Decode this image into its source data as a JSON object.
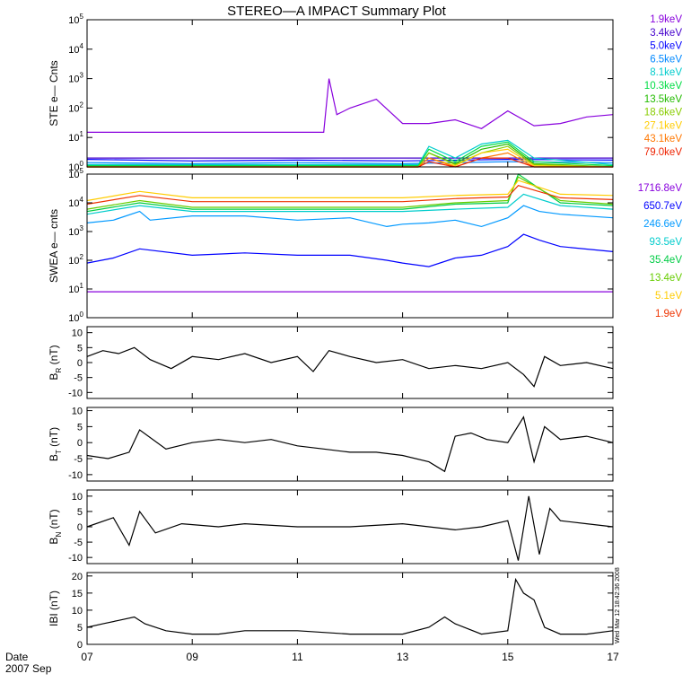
{
  "title": "STEREO—A IMPACT Summary Plot",
  "stamp": "Wed Mar 12 18:42:36 2008",
  "footer": {
    "date_label": "Date",
    "period_label": "2007 Sep"
  },
  "x_axis": {
    "range": [
      7,
      17
    ],
    "ticks": [
      7,
      9,
      11,
      13,
      15,
      17
    ],
    "tick_labels": [
      "07",
      "09",
      "11",
      "13",
      "15",
      "17"
    ]
  },
  "colors": {
    "background": "#ffffff",
    "axes": "#000000",
    "trace": "#000000"
  },
  "chart_data": [
    {
      "type": "line",
      "ylabel": "STE e— Cnts",
      "yscale": "log",
      "ylim": [
        1,
        100000
      ],
      "yticks": [
        1,
        10,
        100,
        1000,
        10000,
        100000
      ],
      "legend_position": "right",
      "series": [
        {
          "name": "1.9keV",
          "color": "#8800dd",
          "x": [
            7.0,
            8.0,
            9.0,
            10.0,
            11.0,
            11.5,
            11.6,
            11.75,
            12.0,
            12.5,
            13.0,
            13.2,
            13.5,
            14.0,
            14.5,
            15.0,
            15.5,
            16.0,
            16.5,
            17.0
          ],
          "y": [
            15,
            15,
            15,
            15,
            15,
            15,
            1000,
            60,
            100,
            200,
            30,
            30,
            30,
            40,
            20,
            80,
            25,
            30,
            50,
            60
          ]
        },
        {
          "name": "3.4keV",
          "color": "#4400cc",
          "x": [
            7,
            9,
            11,
            13,
            15,
            17
          ],
          "y": [
            2,
            2,
            2,
            2,
            2,
            2
          ]
        },
        {
          "name": "5.0keV",
          "color": "#0000ff",
          "x": [
            7,
            9,
            11,
            13,
            15,
            17
          ],
          "y": [
            1.8,
            1.6,
            1.7,
            1.6,
            1.8,
            1.7
          ]
        },
        {
          "name": "6.5keV",
          "color": "#0088ff",
          "x": [
            7,
            9,
            11,
            13,
            15,
            17
          ],
          "y": [
            1.4,
            1.3,
            1.4,
            1.3,
            1.5,
            1.4
          ]
        },
        {
          "name": "8.1keV",
          "color": "#00cccc",
          "x": [
            7,
            13.3,
            13.5,
            14,
            14.5,
            15,
            15.5,
            17
          ],
          "y": [
            1.2,
            1.2,
            5,
            2,
            6,
            8,
            2,
            1.2
          ]
        },
        {
          "name": "10.3keV",
          "color": "#00dd44",
          "x": [
            7,
            13.3,
            13.5,
            14,
            14.5,
            15,
            15.5,
            17
          ],
          "y": [
            1.1,
            1.1,
            4,
            1.5,
            5,
            7,
            1.5,
            1.1
          ]
        },
        {
          "name": "13.5keV",
          "color": "#22bb00",
          "x": [
            7,
            13.3,
            13.5,
            14,
            14.5,
            15,
            15.5,
            17
          ],
          "y": [
            1.0,
            1.0,
            3,
            1.3,
            4,
            6,
            1.3,
            1.0
          ]
        },
        {
          "name": "18.6keV",
          "color": "#88cc00",
          "x": [
            7,
            13.3,
            13.5,
            14,
            14.5,
            15,
            15.5,
            17
          ],
          "y": [
            1.0,
            1.0,
            3,
            1.2,
            3,
            5,
            1.2,
            1.0
          ]
        },
        {
          "name": "27.1keV",
          "color": "#ffcc00",
          "x": [
            7,
            13.3,
            13.5,
            14,
            14.5,
            15,
            15.5,
            17
          ],
          "y": [
            1.0,
            1.0,
            2,
            1.1,
            3,
            4,
            1.1,
            1.0
          ]
        },
        {
          "name": "43.1keV",
          "color": "#ff7700",
          "x": [
            7,
            13.3,
            13.5,
            14,
            14.5,
            15,
            15.5,
            17
          ],
          "y": [
            1.0,
            1.0,
            2,
            1.0,
            2,
            3,
            1.0,
            1.0
          ]
        },
        {
          "name": "79.0keV",
          "color": "#ee2200",
          "x": [
            7,
            13.3,
            13.5,
            14,
            14.5,
            15,
            15.5,
            17
          ],
          "y": [
            1.0,
            1.0,
            1.5,
            1.0,
            2,
            2,
            1.0,
            1.0
          ]
        }
      ]
    },
    {
      "type": "line",
      "ylabel": "SWEA e— cnts",
      "yscale": "log",
      "ylim": [
        1,
        100000
      ],
      "yticks": [
        1,
        10,
        100,
        1000,
        10000,
        100000
      ],
      "legend_position": "right",
      "series": [
        {
          "name": "1716.8eV",
          "color": "#8800dd",
          "x": [
            7,
            9,
            11,
            13,
            15,
            17
          ],
          "y": [
            8,
            8,
            8,
            8,
            8,
            8
          ]
        },
        {
          "name": "650.7eV",
          "color": "#0000ff",
          "x": [
            7.0,
            7.5,
            8.0,
            9.0,
            10.0,
            11.0,
            12.0,
            12.7,
            13.0,
            13.5,
            14.0,
            14.5,
            15.0,
            15.3,
            15.6,
            16.0,
            17.0
          ],
          "y": [
            80,
            120,
            250,
            150,
            180,
            150,
            150,
            100,
            80,
            60,
            120,
            150,
            300,
            800,
            500,
            300,
            200
          ]
        },
        {
          "name": "246.6eV",
          "color": "#0099ff",
          "x": [
            7.0,
            7.5,
            8.0,
            8.2,
            9.0,
            10.0,
            11.0,
            12.0,
            12.7,
            13.0,
            13.5,
            14.0,
            14.5,
            15.0,
            15.3,
            15.6,
            16.0,
            17.0
          ],
          "y": [
            2000,
            2500,
            5000,
            2500,
            3500,
            3500,
            2500,
            3000,
            1500,
            1800,
            2000,
            2500,
            1500,
            3000,
            8000,
            5000,
            4000,
            3000
          ]
        },
        {
          "name": "93.5eV",
          "color": "#00cccc",
          "x": [
            7,
            8,
            9,
            11,
            13,
            14,
            15,
            15.3,
            16,
            17
          ],
          "y": [
            4000,
            8000,
            5000,
            5000,
            5000,
            6000,
            7000,
            20000,
            8000,
            6000
          ]
        },
        {
          "name": "35.4eV",
          "color": "#00cc44",
          "x": [
            7,
            8,
            9,
            11,
            13,
            14,
            15,
            15.2,
            16,
            17
          ],
          "y": [
            5000,
            10000,
            6000,
            6000,
            6000,
            9000,
            10000,
            100000,
            10000,
            8000
          ]
        },
        {
          "name": "13.4eV",
          "color": "#66cc00",
          "x": [
            7,
            8,
            9,
            11,
            13,
            14,
            15,
            15.2,
            16,
            17
          ],
          "y": [
            6000,
            12000,
            7000,
            7000,
            7000,
            10000,
            12000,
            80000,
            12000,
            9000
          ]
        },
        {
          "name": "5.1eV",
          "color": "#ffcc00",
          "x": [
            7,
            8,
            9,
            11,
            13,
            14,
            15,
            15.2,
            16,
            17
          ],
          "y": [
            12000,
            25000,
            15000,
            15000,
            15000,
            18000,
            20000,
            60000,
            20000,
            18000
          ]
        },
        {
          "name": "1.9eV",
          "color": "#ee3300",
          "x": [
            7,
            8,
            9,
            11,
            13,
            14,
            15,
            15.2,
            16,
            17
          ],
          "y": [
            9000,
            18000,
            11000,
            11000,
            11000,
            14000,
            16000,
            40000,
            15000,
            13000
          ]
        }
      ]
    },
    {
      "type": "line",
      "ylabel_main": "B",
      "ylabel_sub": "R",
      "ylabel_unit": " (nT)",
      "yscale": "linear",
      "ylim": [
        -12,
        12
      ],
      "yticks": [
        -10,
        -5,
        0,
        5,
        10
      ],
      "series": [
        {
          "x": [
            7.0,
            7.3,
            7.6,
            7.9,
            8.2,
            8.6,
            9.0,
            9.5,
            10.0,
            10.5,
            11.0,
            11.3,
            11.6,
            12.0,
            12.5,
            13.0,
            13.5,
            14.0,
            14.5,
            15.0,
            15.3,
            15.5,
            15.7,
            16.0,
            16.5,
            17.0
          ],
          "y": [
            2,
            4,
            3,
            5,
            1,
            -2,
            2,
            1,
            3,
            0,
            2,
            -3,
            4,
            2,
            0,
            1,
            -2,
            -1,
            -2,
            0,
            -4,
            -8,
            2,
            -1,
            0,
            -2
          ]
        }
      ]
    },
    {
      "type": "line",
      "ylabel_main": "B",
      "ylabel_sub": "T",
      "ylabel_unit": " (nT)",
      "yscale": "linear",
      "ylim": [
        -12,
        11
      ],
      "yticks": [
        -10,
        -5,
        0,
        5,
        10
      ],
      "series": [
        {
          "x": [
            7.0,
            7.4,
            7.8,
            8.0,
            8.5,
            9.0,
            9.5,
            10.0,
            10.5,
            11.0,
            11.5,
            12.0,
            12.5,
            13.0,
            13.5,
            13.8,
            14.0,
            14.3,
            14.6,
            15.0,
            15.3,
            15.5,
            15.7,
            16.0,
            16.5,
            17.0
          ],
          "y": [
            -4,
            -5,
            -3,
            4,
            -2,
            0,
            1,
            0,
            1,
            -1,
            -2,
            -3,
            -3,
            -4,
            -6,
            -9,
            2,
            3,
            1,
            0,
            8,
            -6,
            5,
            1,
            2,
            0
          ]
        }
      ]
    },
    {
      "type": "line",
      "ylabel_main": "B",
      "ylabel_sub": "N",
      "ylabel_unit": " (nT)",
      "yscale": "linear",
      "ylim": [
        -12,
        12
      ],
      "yticks": [
        -10,
        -5,
        0,
        5,
        10
      ],
      "series": [
        {
          "x": [
            7.0,
            7.5,
            7.8,
            8.0,
            8.3,
            8.8,
            9.5,
            10.0,
            11.0,
            12.0,
            13.0,
            14.0,
            14.5,
            15.0,
            15.2,
            15.4,
            15.6,
            15.8,
            16.0,
            16.5,
            17.0
          ],
          "y": [
            0,
            3,
            -6,
            5,
            -2,
            1,
            0,
            1,
            0,
            0,
            1,
            -1,
            0,
            2,
            -11,
            10,
            -9,
            6,
            2,
            1,
            0
          ]
        }
      ]
    },
    {
      "type": "line",
      "ylabel": "IBI (nT)",
      "yscale": "linear",
      "ylim": [
        0,
        21
      ],
      "yticks": [
        0,
        5,
        10,
        15,
        20
      ],
      "series": [
        {
          "x": [
            7.0,
            7.3,
            7.6,
            7.9,
            8.1,
            8.5,
            9.0,
            9.5,
            10.0,
            11.0,
            12.0,
            12.5,
            13.0,
            13.5,
            13.8,
            14.0,
            14.5,
            15.0,
            15.15,
            15.3,
            15.5,
            15.7,
            16.0,
            16.5,
            17.0
          ],
          "y": [
            5,
            6,
            7,
            8,
            6,
            4,
            3,
            3,
            4,
            4,
            3,
            3,
            3,
            5,
            8,
            6,
            3,
            4,
            19,
            15,
            13,
            5,
            3,
            3,
            4
          ]
        }
      ]
    }
  ]
}
